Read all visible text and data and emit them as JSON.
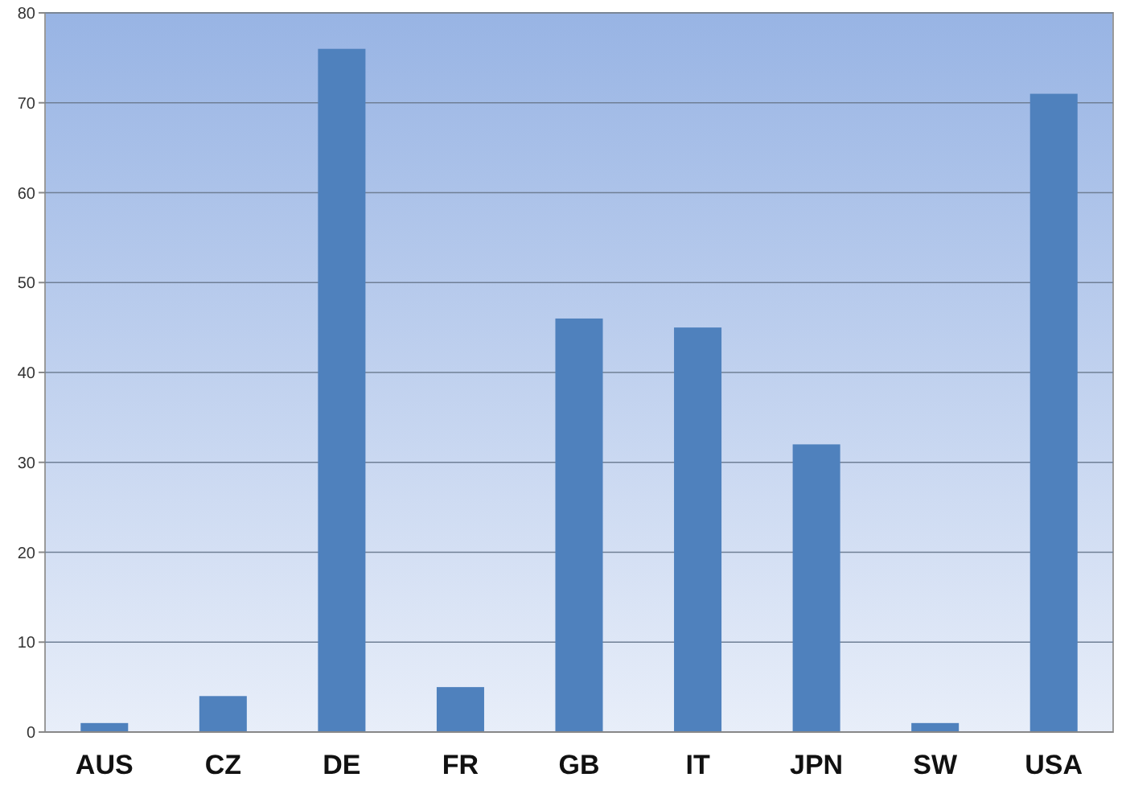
{
  "chart_data": {
    "type": "bar",
    "categories": [
      "AUS",
      "CZ",
      "DE",
      "FR",
      "GB",
      "IT",
      "JPN",
      "SW",
      "USA"
    ],
    "values": [
      1,
      4,
      76,
      5,
      46,
      45,
      32,
      1,
      71
    ],
    "color": "#4f81bd",
    "ylim": [
      0,
      80
    ],
    "yticks": [
      0,
      10,
      20,
      30,
      40,
      50,
      60,
      70,
      80
    ],
    "grid": "y"
  }
}
